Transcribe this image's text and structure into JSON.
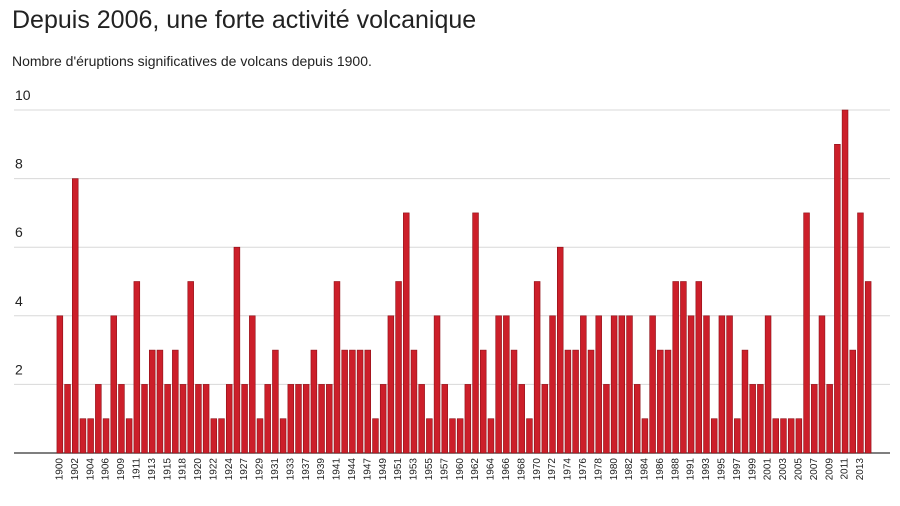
{
  "chart_data": {
    "type": "bar",
    "title": "Depuis 2006, une forte activité volcanique",
    "subtitle": "Nombre d'éruptions significatives de volcans depuis 1900.",
    "categories": [
      "1900",
      null,
      "1902",
      null,
      "1904",
      null,
      "1906",
      null,
      "1909",
      null,
      "1911",
      null,
      "1913",
      null,
      "1915",
      null,
      "1918",
      null,
      "1920",
      null,
      "1922",
      null,
      "1924",
      null,
      "1927",
      null,
      "1929",
      null,
      "1931",
      null,
      "1933",
      null,
      "1937",
      null,
      "1939",
      null,
      "1941",
      null,
      "1944",
      null,
      "1947",
      null,
      "1949",
      null,
      "1951",
      null,
      "1953",
      null,
      "1955",
      null,
      "1957",
      null,
      "1960",
      null,
      "1962",
      null,
      "1964",
      null,
      "1966",
      null,
      "1968",
      null,
      "1970",
      null,
      "1972",
      null,
      "1974",
      null,
      "1976",
      null,
      "1978",
      null,
      "1980",
      null,
      "1982",
      null,
      "1984",
      null,
      "1986",
      null,
      "1988",
      null,
      "1991",
      null,
      "1993",
      null,
      "1995",
      null,
      "1997",
      null,
      "1999",
      null,
      "2001",
      null,
      "2003",
      null,
      "2005",
      null,
      "2007",
      null,
      "2009",
      null,
      "2011",
      null,
      "2013",
      null
    ],
    "values": [
      4,
      2,
      8,
      1,
      1,
      2,
      1,
      4,
      2,
      1,
      5,
      2,
      3,
      3,
      2,
      3,
      2,
      5,
      2,
      2,
      1,
      1,
      2,
      6,
      2,
      4,
      1,
      2,
      3,
      1,
      2,
      2,
      2,
      3,
      2,
      2,
      5,
      3,
      3,
      3,
      3,
      1,
      2,
      4,
      5,
      7,
      3,
      2,
      1,
      4,
      2,
      1,
      1,
      2,
      7,
      3,
      1,
      4,
      4,
      3,
      2,
      1,
      5,
      2,
      4,
      6,
      3,
      3,
      4,
      3,
      4,
      2,
      4,
      4,
      4,
      2,
      1,
      4,
      3,
      3,
      5,
      5,
      4,
      5,
      4,
      1,
      4,
      4,
      1,
      3,
      2,
      2,
      4,
      1,
      1,
      1,
      1,
      7,
      2,
      4,
      2,
      9,
      10,
      3,
      7,
      5
    ],
    "color": "#cc1f2a",
    "ylim": [
      0,
      10
    ],
    "yticks": [
      2,
      4,
      6,
      8,
      10
    ],
    "grid": true
  }
}
